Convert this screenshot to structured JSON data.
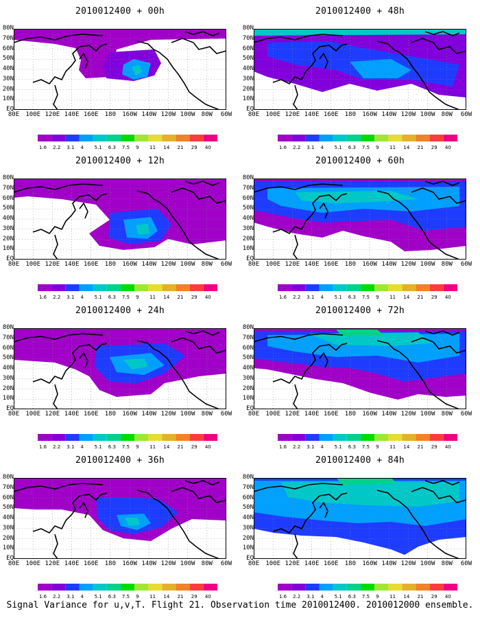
{
  "panels": [
    {
      "title": "2010012400 + 00h"
    },
    {
      "title": "2010012400 + 48h"
    },
    {
      "title": "2010012400 + 12h"
    },
    {
      "title": "2010012400 + 60h"
    },
    {
      "title": "2010012400 + 24h"
    },
    {
      "title": "2010012400 + 72h"
    },
    {
      "title": "2010012400 + 36h"
    },
    {
      "title": "2010012400 + 84h"
    }
  ],
  "axis": {
    "lon_labels": [
      "80E",
      "100E",
      "120E",
      "140E",
      "160E",
      "180",
      "160W",
      "140W",
      "120W",
      "100W",
      "80W",
      "60W"
    ],
    "lat_labels": [
      "80N",
      "70N",
      "60N",
      "50N",
      "40N",
      "30N",
      "20N",
      "10N",
      "EQ"
    ]
  },
  "colorbar": {
    "levels": [
      "1.6",
      "2.2",
      "3.1",
      "4",
      "5.1",
      "6.3",
      "7.5",
      "9",
      "11",
      "14",
      "21",
      "29",
      "40"
    ],
    "colors": [
      "#a000c8",
      "#8200dc",
      "#1e3cff",
      "#00a0ff",
      "#00c8c8",
      "#00d28c",
      "#00dc00",
      "#a0e632",
      "#e6dc32",
      "#e6af2d",
      "#f08228",
      "#fa3c3c",
      "#f00082"
    ]
  },
  "caption": "Signal Variance for u,v,T. Flight 21. Observation time 2010012400. 2010012000 ensemble."
}
